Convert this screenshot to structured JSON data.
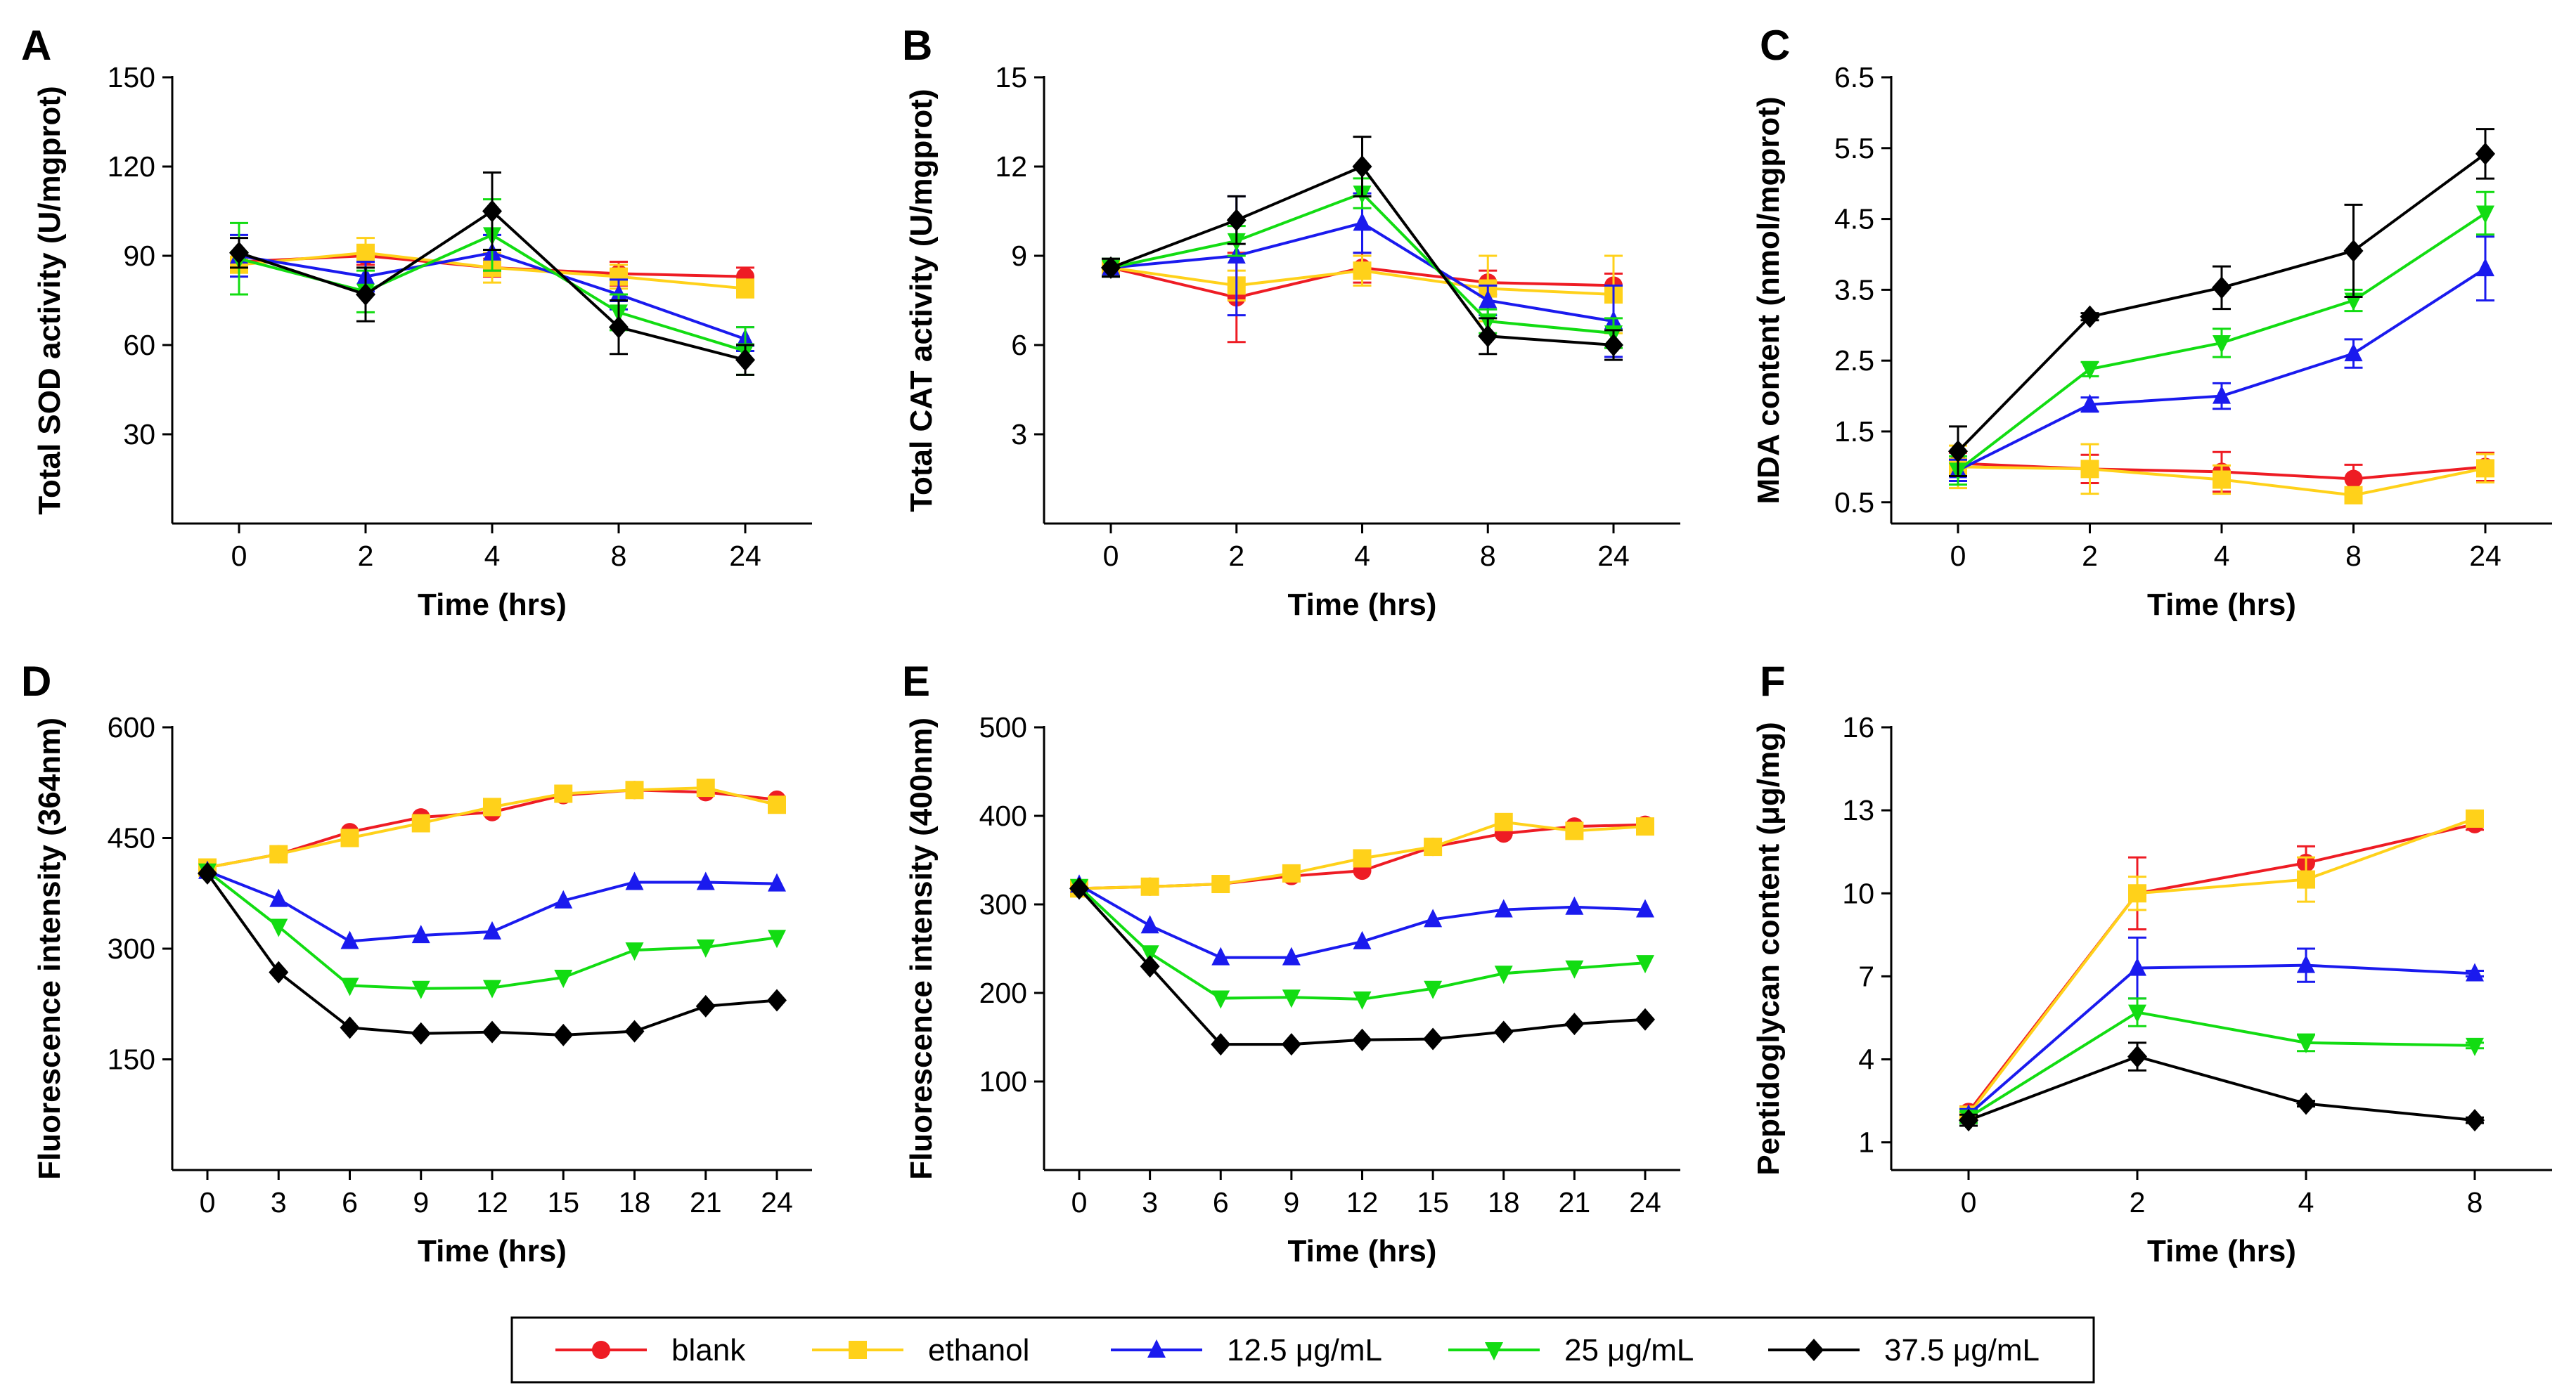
{
  "legend": [
    {
      "name": "blank",
      "color": "#ee1c24",
      "marker": "circle"
    },
    {
      "name": "ethanol",
      "color": "#ffd11a",
      "marker": "square"
    },
    {
      "name": "12.5 μg/mL",
      "color": "#1a1aee",
      "marker": "triangle-up"
    },
    {
      "name": "25 μg/mL",
      "color": "#12dc12",
      "marker": "triangle-down"
    },
    {
      "name": "37.5 μg/mL",
      "color": "#000000",
      "marker": "diamond"
    }
  ],
  "chart_data": [
    {
      "panel": "A",
      "type": "line",
      "xlabel": "Time (hrs)",
      "ylabel": "Total SOD activity (U/mgprot)",
      "categories": [
        "0",
        "2",
        "4",
        "8",
        "24"
      ],
      "ylim": [
        0,
        150
      ],
      "yticks": [
        30,
        60,
        90,
        120,
        150
      ],
      "series": [
        {
          "name": "blank",
          "values": [
            88,
            90,
            86,
            84,
            83
          ],
          "errors": [
            3,
            3,
            3,
            4,
            3
          ]
        },
        {
          "name": "ethanol",
          "values": [
            87,
            91,
            86,
            83,
            79
          ],
          "errors": [
            4,
            5,
            5,
            4,
            3
          ]
        },
        {
          "name": "12.5 μg/mL",
          "values": [
            90,
            83,
            91,
            77,
            62
          ],
          "errors": [
            7,
            5,
            6,
            5,
            4
          ]
        },
        {
          "name": "25 μg/mL",
          "values": [
            89,
            78,
            97,
            71,
            58
          ],
          "errors": [
            12,
            7,
            12,
            6,
            8
          ]
        },
        {
          "name": "37.5 μg/mL",
          "values": [
            91,
            77,
            105,
            66,
            55
          ],
          "errors": [
            5,
            9,
            13,
            9,
            5
          ]
        }
      ]
    },
    {
      "panel": "B",
      "type": "line",
      "xlabel": "Time (hrs)",
      "ylabel": "Total CAT activity (U/mgprot)",
      "categories": [
        "0",
        "2",
        "4",
        "8",
        "24"
      ],
      "ylim": [
        0,
        15
      ],
      "yticks": [
        3,
        6,
        9,
        12,
        15
      ],
      "series": [
        {
          "name": "blank",
          "values": [
            8.6,
            7.6,
            8.6,
            8.1,
            8.0
          ],
          "errors": [
            0.3,
            1.5,
            0.5,
            0.4,
            0.4
          ]
        },
        {
          "name": "ethanol",
          "values": [
            8.6,
            8.0,
            8.5,
            7.9,
            7.7
          ],
          "errors": [
            0.3,
            0.5,
            0.5,
            1.1,
            1.3
          ]
        },
        {
          "name": "12.5 μg/mL",
          "values": [
            8.6,
            9.0,
            10.1,
            7.5,
            6.8
          ],
          "errors": [
            0.3,
            2.0,
            1.0,
            0.5,
            1.2
          ]
        },
        {
          "name": "25 μg/mL",
          "values": [
            8.6,
            9.5,
            11.1,
            6.8,
            6.4
          ],
          "errors": [
            0.3,
            0.5,
            0.5,
            0.4,
            0.5
          ]
        },
        {
          "name": "37.5 μg/mL",
          "values": [
            8.6,
            10.2,
            12.0,
            6.3,
            6.0
          ],
          "errors": [
            0.3,
            0.8,
            1.0,
            0.6,
            0.5
          ]
        }
      ]
    },
    {
      "panel": "C",
      "type": "line",
      "xlabel": "Time (hrs)",
      "ylabel": "MDA content (nmol/mgprot)",
      "categories": [
        "0",
        "2",
        "4",
        "8",
        "24"
      ],
      "ylim": [
        0.2,
        6.5
      ],
      "yticks": [
        0.5,
        1.5,
        2.5,
        3.5,
        4.5,
        5.5,
        6.5
      ],
      "series": [
        {
          "name": "blank",
          "values": [
            1.05,
            0.97,
            0.93,
            0.83,
            1.0
          ],
          "errors": [
            0.15,
            0.2,
            0.28,
            0.2,
            0.2
          ]
        },
        {
          "name": "ethanol",
          "values": [
            1.0,
            0.97,
            0.82,
            0.6,
            0.98
          ],
          "errors": [
            0.3,
            0.35,
            0.2,
            0.1,
            0.2
          ]
        },
        {
          "name": "12.5 μg/mL",
          "values": [
            0.95,
            1.88,
            2.0,
            2.6,
            3.8
          ],
          "errors": [
            0.15,
            0.1,
            0.18,
            0.2,
            0.45
          ]
        },
        {
          "name": "25 μg/mL",
          "values": [
            0.95,
            2.38,
            2.75,
            3.35,
            4.58
          ],
          "errors": [
            0.2,
            0.1,
            0.2,
            0.15,
            0.3
          ]
        },
        {
          "name": "37.5 μg/mL",
          "values": [
            1.22,
            3.12,
            3.53,
            4.05,
            5.42
          ],
          "errors": [
            0.35,
            0.05,
            0.3,
            0.65,
            0.35
          ]
        }
      ]
    },
    {
      "panel": "D",
      "type": "line",
      "xlabel": "Time (hrs)",
      "ylabel": "Fluorescence intensity (364nm)",
      "categories": [
        "0",
        "3",
        "6",
        "9",
        "12",
        "15",
        "18",
        "21",
        "24"
      ],
      "ylim": [
        0,
        600
      ],
      "yticks": [
        150,
        300,
        450,
        600
      ],
      "series": [
        {
          "name": "blank",
          "values": [
            410,
            428,
            458,
            478,
            485,
            508,
            515,
            512,
            502
          ]
        },
        {
          "name": "ethanol",
          "values": [
            410,
            428,
            450,
            470,
            492,
            510,
            515,
            518,
            495
          ]
        },
        {
          "name": "12.5 μg/mL",
          "values": [
            405,
            367,
            310,
            318,
            323,
            365,
            390,
            390,
            388
          ]
        },
        {
          "name": "25 μg/mL",
          "values": [
            405,
            330,
            250,
            246,
            247,
            261,
            298,
            302,
            315
          ]
        },
        {
          "name": "37.5 μg/mL",
          "values": [
            402,
            268,
            193,
            185,
            187,
            183,
            188,
            222,
            230
          ]
        }
      ]
    },
    {
      "panel": "E",
      "type": "line",
      "xlabel": "Time (hrs)",
      "ylabel": "Fluorescence intensity (400nm)",
      "categories": [
        "0",
        "3",
        "6",
        "9",
        "12",
        "15",
        "18",
        "21",
        "24"
      ],
      "ylim": [
        0,
        500
      ],
      "yticks": [
        100,
        200,
        300,
        400,
        500
      ],
      "series": [
        {
          "name": "blank",
          "values": [
            318,
            320,
            323,
            332,
            338,
            365,
            380,
            388,
            390
          ]
        },
        {
          "name": "ethanol",
          "values": [
            318,
            320,
            323,
            335,
            352,
            365,
            393,
            383,
            388
          ]
        },
        {
          "name": "12.5 μg/mL",
          "values": [
            322,
            276,
            240,
            240,
            258,
            283,
            294,
            297,
            294
          ]
        },
        {
          "name": "25 μg/mL",
          "values": [
            320,
            245,
            194,
            195,
            193,
            205,
            222,
            228,
            234
          ]
        },
        {
          "name": "37.5 μg/mL",
          "values": [
            318,
            230,
            142,
            142,
            147,
            148,
            156,
            165,
            170
          ]
        }
      ]
    },
    {
      "panel": "F",
      "type": "line",
      "xlabel": "Time (hrs)",
      "ylabel": "Peptidoglycan content (μg/mg)",
      "categories": [
        "0",
        "2",
        "4",
        "8"
      ],
      "ylim": [
        0,
        16
      ],
      "yticks": [
        1,
        4,
        7,
        10,
        13,
        16
      ],
      "series": [
        {
          "name": "blank",
          "values": [
            2.1,
            10.0,
            11.1,
            12.5
          ],
          "errors": [
            0.2,
            1.3,
            0.6,
            0.2
          ]
        },
        {
          "name": "ethanol",
          "values": [
            2.0,
            10.0,
            10.5,
            12.7
          ],
          "errors": [
            0.2,
            0.6,
            0.8,
            0.2
          ]
        },
        {
          "name": "12.5 μg/mL",
          "values": [
            2.0,
            7.3,
            7.4,
            7.1
          ],
          "errors": [
            0.2,
            1.1,
            0.6,
            0.1
          ]
        },
        {
          "name": "25 μg/mL",
          "values": [
            1.9,
            5.7,
            4.6,
            4.5
          ],
          "errors": [
            0.2,
            0.5,
            0.3,
            0.1
          ]
        },
        {
          "name": "37.5 μg/mL",
          "values": [
            1.8,
            4.1,
            2.4,
            1.8
          ],
          "errors": [
            0.2,
            0.5,
            0.1,
            0.1
          ]
        }
      ]
    }
  ]
}
